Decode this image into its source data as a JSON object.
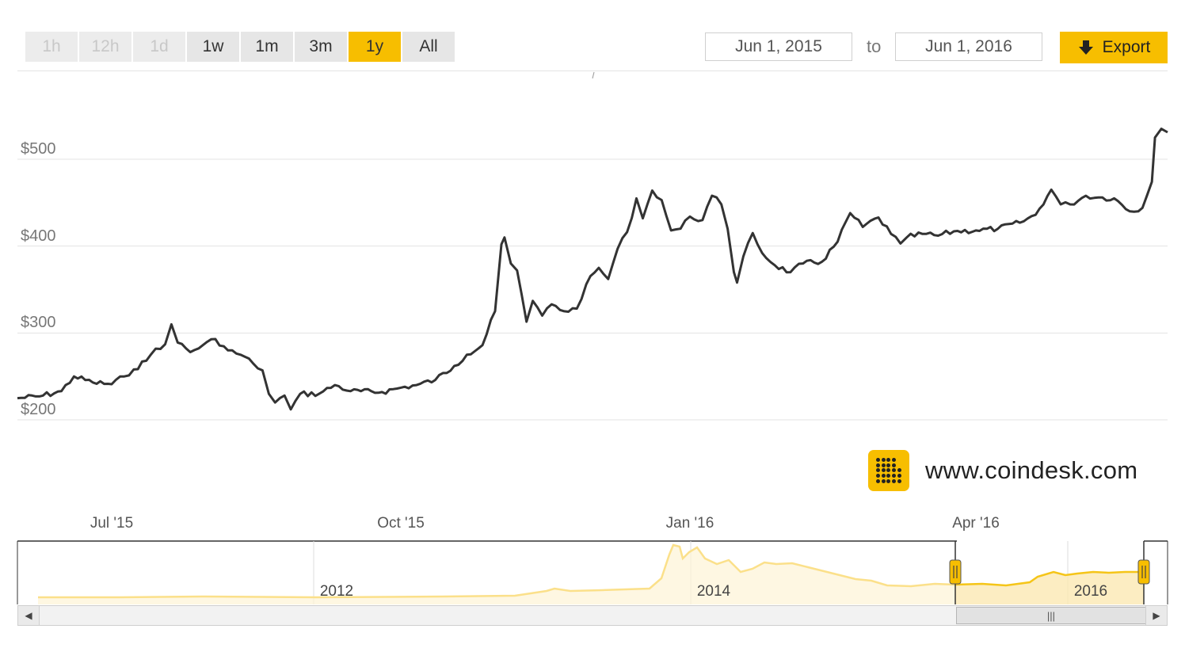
{
  "toolbar": {
    "ranges": [
      {
        "label": "1h",
        "state": "disabled"
      },
      {
        "label": "12h",
        "state": "disabled"
      },
      {
        "label": "1d",
        "state": "disabled"
      },
      {
        "label": "1w",
        "state": "normal"
      },
      {
        "label": "1m",
        "state": "normal"
      },
      {
        "label": "3m",
        "state": "normal"
      },
      {
        "label": "1y",
        "state": "active"
      },
      {
        "label": "All",
        "state": "normal"
      }
    ],
    "from_date": "Jun 1, 2015",
    "to_label": "to",
    "to_date": "Jun 1, 2016",
    "export_label": "Export",
    "export_icon": "down-arrow-icon"
  },
  "brand": {
    "text": "www.coindesk.com",
    "logo_icon": "coindesk-logo-icon"
  },
  "colors": {
    "accent": "#f7be00",
    "line": "#333333",
    "grid": "#e3e3e3",
    "navigator_line": "#f5c518",
    "navigator_fill": "#fdf3d6"
  },
  "navigator": {
    "labels": [
      "2012",
      "2014",
      "2016"
    ],
    "selected_range": [
      "Jun 1, 2015",
      "Jun 1, 2016"
    ],
    "scroll_thumb_icon": "grip-lines-icon",
    "scroll_left_icon": "scroll-left-icon",
    "scroll_right_icon": "scroll-right-icon"
  },
  "chart_data": {
    "type": "line",
    "title": "",
    "xlabel": "",
    "ylabel": "",
    "ytick_labels": [
      "$200",
      "$300",
      "$400",
      "$500"
    ],
    "yticks": [
      200,
      300,
      400,
      500
    ],
    "xtick_labels": [
      "Jul '15",
      "Oct '15",
      "Jan '16",
      "Apr '16"
    ],
    "xticks": [
      "2015-07-01",
      "2015-10-01",
      "2016-01-01",
      "2016-04-01"
    ],
    "xlim": [
      "2015-06-01",
      "2016-06-01"
    ],
    "ylim": [
      190,
      580
    ],
    "grid": true,
    "legend": "none",
    "series": [
      {
        "values": [
          [
            "2015-06-01",
            225
          ],
          [
            "2015-06-08",
            227
          ],
          [
            "2015-06-15",
            233
          ],
          [
            "2015-06-19",
            250
          ],
          [
            "2015-06-25",
            243
          ],
          [
            "2015-07-01",
            241
          ],
          [
            "2015-07-05",
            250
          ],
          [
            "2015-07-08",
            258
          ],
          [
            "2015-07-12",
            268
          ],
          [
            "2015-07-15",
            282
          ],
          [
            "2015-07-18",
            287
          ],
          [
            "2015-07-20",
            310
          ],
          [
            "2015-07-22",
            289
          ],
          [
            "2015-07-26",
            278
          ],
          [
            "2015-07-30",
            286
          ],
          [
            "2015-08-03",
            293
          ],
          [
            "2015-08-07",
            280
          ],
          [
            "2015-08-11",
            275
          ],
          [
            "2015-08-15",
            265
          ],
          [
            "2015-08-18",
            257
          ],
          [
            "2015-08-20",
            230
          ],
          [
            "2015-08-22",
            220
          ],
          [
            "2015-08-25",
            228
          ],
          [
            "2015-08-27",
            212
          ],
          [
            "2015-08-30",
            230
          ],
          [
            "2015-09-05",
            230
          ],
          [
            "2015-09-10",
            240
          ],
          [
            "2015-09-15",
            233
          ],
          [
            "2015-09-25",
            232
          ],
          [
            "2015-10-01",
            237
          ],
          [
            "2015-10-06",
            240
          ],
          [
            "2015-10-12",
            246
          ],
          [
            "2015-10-18",
            262
          ],
          [
            "2015-10-22",
            275
          ],
          [
            "2015-10-27",
            286
          ],
          [
            "2015-10-31",
            325
          ],
          [
            "2015-11-02",
            402
          ],
          [
            "2015-11-03",
            410
          ],
          [
            "2015-11-05",
            380
          ],
          [
            "2015-11-07",
            372
          ],
          [
            "2015-11-10",
            313
          ],
          [
            "2015-11-12",
            337
          ],
          [
            "2015-11-15",
            320
          ],
          [
            "2015-11-18",
            333
          ],
          [
            "2015-11-22",
            325
          ],
          [
            "2015-11-26",
            328
          ],
          [
            "2015-11-29",
            356
          ],
          [
            "2015-12-03",
            375
          ],
          [
            "2015-12-06",
            362
          ],
          [
            "2015-12-09",
            397
          ],
          [
            "2015-12-12",
            416
          ],
          [
            "2015-12-15",
            455
          ],
          [
            "2015-12-17",
            432
          ],
          [
            "2015-12-20",
            464
          ],
          [
            "2015-12-23",
            453
          ],
          [
            "2015-12-26",
            418
          ],
          [
            "2015-12-29",
            420
          ],
          [
            "2016-01-01",
            434
          ],
          [
            "2016-01-05",
            430
          ],
          [
            "2016-01-08",
            458
          ],
          [
            "2016-01-11",
            448
          ],
          [
            "2016-01-13",
            420
          ],
          [
            "2016-01-15",
            370
          ],
          [
            "2016-01-16",
            358
          ],
          [
            "2016-01-18",
            388
          ],
          [
            "2016-01-21",
            415
          ],
          [
            "2016-01-24",
            392
          ],
          [
            "2016-01-28",
            378
          ],
          [
            "2016-02-02",
            370
          ],
          [
            "2016-02-06",
            380
          ],
          [
            "2016-02-12",
            382
          ],
          [
            "2016-02-17",
            405
          ],
          [
            "2016-02-21",
            438
          ],
          [
            "2016-02-25",
            422
          ],
          [
            "2016-03-01",
            433
          ],
          [
            "2016-03-05",
            414
          ],
          [
            "2016-03-08",
            403
          ],
          [
            "2016-03-10",
            410
          ],
          [
            "2016-03-15",
            414
          ],
          [
            "2016-03-20",
            412
          ],
          [
            "2016-03-25",
            417
          ],
          [
            "2016-04-01",
            418
          ],
          [
            "2016-04-08",
            420
          ],
          [
            "2016-04-15",
            427
          ],
          [
            "2016-04-20",
            436
          ],
          [
            "2016-04-25",
            465
          ],
          [
            "2016-04-28",
            448
          ],
          [
            "2016-05-01",
            448
          ],
          [
            "2016-05-06",
            458
          ],
          [
            "2016-05-10",
            456
          ],
          [
            "2016-05-15",
            455
          ],
          [
            "2016-05-20",
            440
          ],
          [
            "2016-05-24",
            444
          ],
          [
            "2016-05-27",
            474
          ],
          [
            "2016-05-28",
            525
          ],
          [
            "2016-05-30",
            535
          ],
          [
            "2016-06-01",
            531
          ]
        ]
      }
    ]
  }
}
